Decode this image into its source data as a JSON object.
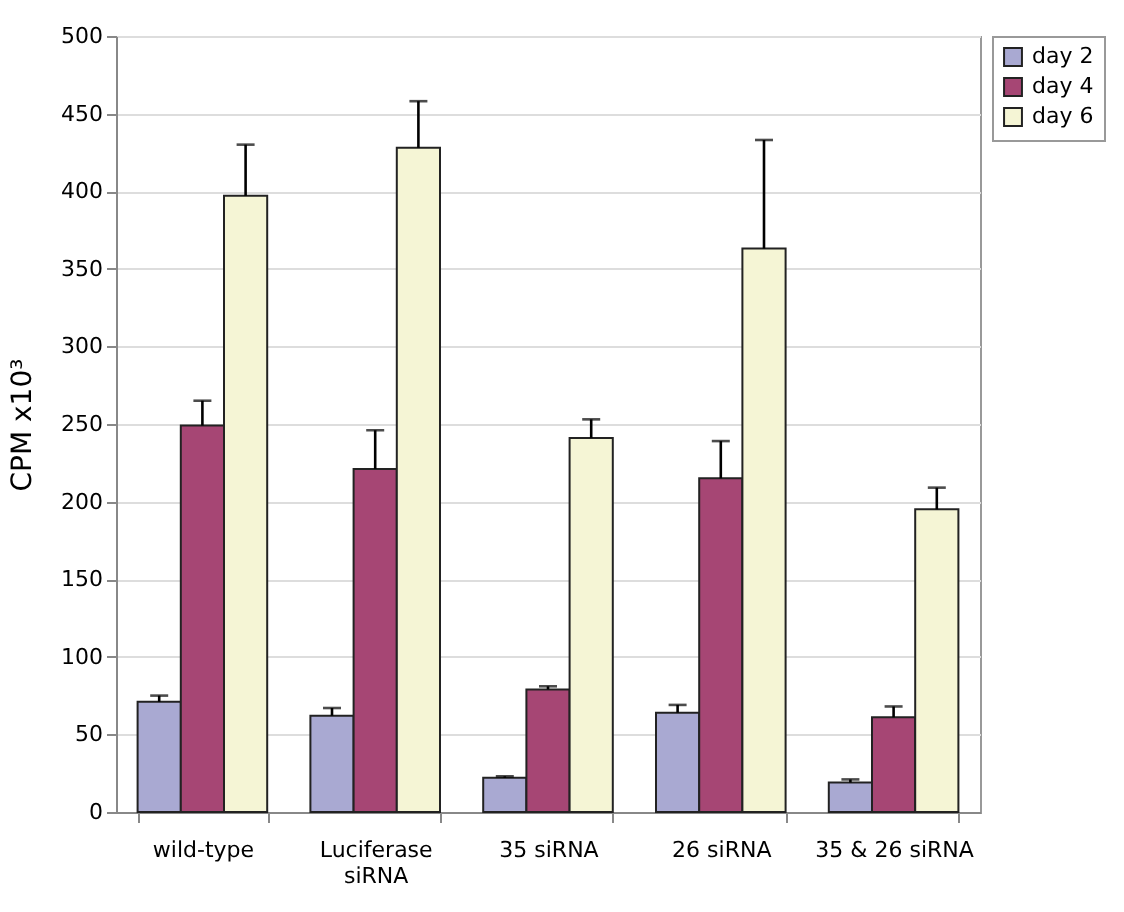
{
  "chart_data": {
    "type": "bar",
    "ylabel": "CPM x10³",
    "categories": [
      "wild-type",
      "Luciferase siRNA",
      "35 siRNA",
      "26 siRNA",
      "35 & 26 siRNA"
    ],
    "series": [
      {
        "name": "day 2",
        "color": "#a9a9d2",
        "values": [
          71,
          62,
          22,
          64,
          19
        ],
        "errors": [
          [
            71,
            75
          ],
          [
            62,
            67
          ],
          [
            22,
            23
          ],
          [
            64,
            69
          ],
          [
            19,
            21
          ]
        ]
      },
      {
        "name": "day 4",
        "color": "#a64674",
        "values": [
          249,
          221,
          79,
          215,
          61
        ],
        "errors": [
          [
            249,
            265
          ],
          [
            221,
            246
          ],
          [
            79,
            81
          ],
          [
            215,
            239
          ],
          [
            61,
            68
          ]
        ]
      },
      {
        "name": "day 6",
        "color": "#f5f5d5",
        "values": [
          397,
          428,
          241,
          363,
          195
        ],
        "errors": [
          [
            397,
            430
          ],
          [
            428,
            458
          ],
          [
            241,
            253
          ],
          [
            363,
            433
          ],
          [
            195,
            209
          ]
        ]
      }
    ],
    "ylim": [
      0,
      500
    ],
    "yticks": [
      0,
      50,
      100,
      150,
      200,
      250,
      300,
      350,
      400,
      450,
      500
    ],
    "grid": "y",
    "legend": "right"
  }
}
